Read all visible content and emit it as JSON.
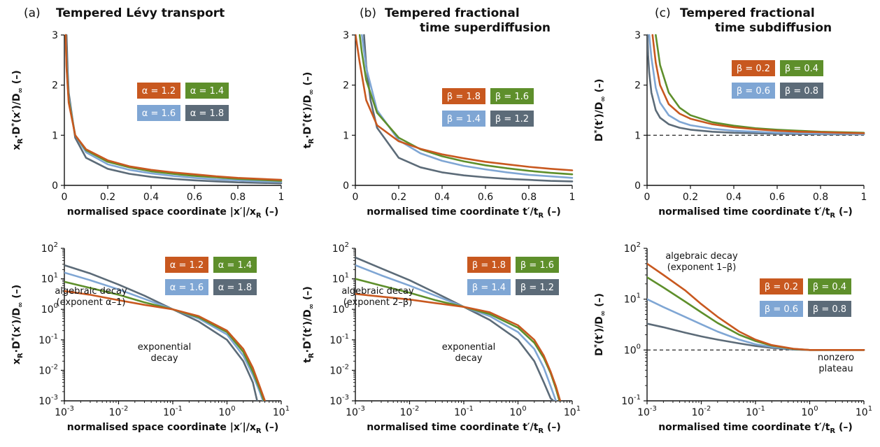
{
  "colors": {
    "orange": "#c8581f",
    "green": "#5e8f2b",
    "blue": "#7fa6d4",
    "slate": "#5c6b78"
  },
  "chart_data": [
    {
      "id": "a-top",
      "type": "line",
      "panel_letter": "(a)",
      "panel_title": "Tempered Lévy transport",
      "scale": "linear",
      "xlim": [
        0,
        1
      ],
      "ylim": [
        0,
        3
      ],
      "x_ticks": [
        "0",
        "0.2",
        "0.4",
        "0.6",
        "0.8",
        "1"
      ],
      "y_ticks": [
        "0",
        "1",
        "2",
        "3"
      ],
      "xlabel": "normalised space coordinate |x′|/xR (–)",
      "ylabel": "xR·D*(x′)/D∞ (–)",
      "series": [
        {
          "name": "α = 1.2",
          "color": "#c8581f",
          "x": [
            0.006,
            0.01,
            0.02,
            0.05,
            0.1,
            0.2,
            0.3,
            0.4,
            0.5,
            0.6,
            0.7,
            0.8,
            0.9,
            1.0
          ],
          "y": [
            3.0,
            2.35,
            1.65,
            1.0,
            0.72,
            0.5,
            0.38,
            0.31,
            0.26,
            0.22,
            0.18,
            0.15,
            0.13,
            0.11
          ]
        },
        {
          "name": "α = 1.4",
          "color": "#5e8f2b",
          "x": [
            0.006,
            0.01,
            0.02,
            0.05,
            0.1,
            0.2,
            0.3,
            0.4,
            0.5,
            0.6,
            0.7,
            0.8,
            0.9,
            1.0
          ],
          "y": [
            3.0,
            2.4,
            1.7,
            1.0,
            0.7,
            0.47,
            0.36,
            0.28,
            0.23,
            0.19,
            0.16,
            0.13,
            0.11,
            0.09
          ]
        },
        {
          "name": "α = 1.6",
          "color": "#7fa6d4",
          "x": [
            0.007,
            0.01,
            0.02,
            0.05,
            0.1,
            0.2,
            0.3,
            0.4,
            0.5,
            0.6,
            0.7,
            0.8,
            0.9,
            1.0
          ],
          "y": [
            3.0,
            2.5,
            1.75,
            1.0,
            0.66,
            0.42,
            0.31,
            0.24,
            0.19,
            0.15,
            0.12,
            0.1,
            0.08,
            0.07
          ]
        },
        {
          "name": "α = 1.8",
          "color": "#5c6b78",
          "x": [
            0.01,
            0.015,
            0.02,
            0.05,
            0.1,
            0.2,
            0.3,
            0.4,
            0.5,
            0.6,
            0.7,
            0.8,
            0.9,
            1.0
          ],
          "y": [
            3.0,
            2.3,
            1.85,
            0.95,
            0.55,
            0.33,
            0.23,
            0.17,
            0.13,
            0.1,
            0.08,
            0.06,
            0.05,
            0.04
          ]
        }
      ],
      "legend": [
        "α = 1.2",
        "α = 1.4",
        "α = 1.6",
        "α = 1.8"
      ],
      "annotations": []
    },
    {
      "id": "b-top",
      "type": "line",
      "panel_letter": "(b)",
      "panel_title_line1": "Tempered fractional",
      "panel_title_line2": "time superdiffusion",
      "scale": "linear",
      "xlim": [
        0,
        1
      ],
      "ylim": [
        0,
        3
      ],
      "x_ticks": [
        "0",
        "0.2",
        "0.4",
        "0.6",
        "0.8",
        "1"
      ],
      "y_ticks": [
        "0",
        "1",
        "2",
        "3"
      ],
      "xlabel": "normalised time coordinate t′/tR (–)",
      "ylabel": "tR·D*(t′)/D∞ (–)",
      "series": [
        {
          "name": "β = 1.8",
          "color": "#c8581f",
          "x": [
            0.001,
            0.02,
            0.05,
            0.1,
            0.2,
            0.3,
            0.4,
            0.5,
            0.6,
            0.7,
            0.8,
            0.9,
            1.0
          ],
          "y": [
            3.0,
            2.45,
            1.7,
            1.2,
            0.88,
            0.73,
            0.62,
            0.54,
            0.47,
            0.42,
            0.37,
            0.33,
            0.3
          ]
        },
        {
          "name": "β = 1.6",
          "color": "#5e8f2b",
          "x": [
            0.02,
            0.03,
            0.05,
            0.1,
            0.2,
            0.3,
            0.4,
            0.5,
            0.6,
            0.7,
            0.8,
            0.9,
            1.0
          ],
          "y": [
            3.0,
            2.65,
            2.1,
            1.45,
            0.95,
            0.72,
            0.58,
            0.48,
            0.4,
            0.34,
            0.29,
            0.25,
            0.22
          ]
        },
        {
          "name": "β = 1.4",
          "color": "#7fa6d4",
          "x": [
            0.03,
            0.05,
            0.1,
            0.2,
            0.3,
            0.4,
            0.5,
            0.6,
            0.7,
            0.8,
            0.9,
            1.0
          ],
          "y": [
            3.0,
            2.35,
            1.5,
            0.9,
            0.64,
            0.49,
            0.39,
            0.32,
            0.26,
            0.21,
            0.18,
            0.15
          ]
        },
        {
          "name": "β = 1.2",
          "color": "#5c6b78",
          "x": [
            0.04,
            0.05,
            0.07,
            0.1,
            0.2,
            0.3,
            0.4,
            0.5,
            0.6,
            0.7,
            0.8,
            0.9,
            1.0
          ],
          "y": [
            3.0,
            2.4,
            1.7,
            1.15,
            0.55,
            0.36,
            0.26,
            0.2,
            0.16,
            0.13,
            0.11,
            0.09,
            0.08
          ]
        }
      ],
      "legend": [
        "β = 1.8",
        "β = 1.6",
        "β = 1.4",
        "β = 1.2"
      ],
      "annotations": []
    },
    {
      "id": "c-top",
      "type": "line",
      "panel_letter": "(c)",
      "panel_title_line1": "Tempered fractional",
      "panel_title_line2": "time subdiffusion",
      "scale": "linear",
      "xlim": [
        0,
        1
      ],
      "ylim": [
        0,
        3
      ],
      "x_ticks": [
        "0",
        "0.2",
        "0.4",
        "0.6",
        "0.8",
        "1"
      ],
      "y_ticks": [
        "0",
        "1",
        "2",
        "3"
      ],
      "xlabel": "normalised time coordinate t′/tR (–)",
      "ylabel": "D*(t′)/D∞ (–)",
      "reference_line": 1,
      "series": [
        {
          "name": "β = 0.2",
          "color": "#c8581f",
          "x": [
            0.025,
            0.04,
            0.06,
            0.1,
            0.15,
            0.2,
            0.3,
            0.4,
            0.5,
            0.6,
            0.7,
            0.8,
            0.9,
            1.0
          ],
          "y": [
            3.0,
            2.45,
            2.0,
            1.62,
            1.43,
            1.33,
            1.22,
            1.16,
            1.12,
            1.09,
            1.07,
            1.06,
            1.05,
            1.04
          ]
        },
        {
          "name": "β = 0.4",
          "color": "#5e8f2b",
          "x": [
            0.04,
            0.06,
            0.1,
            0.15,
            0.2,
            0.3,
            0.4,
            0.5,
            0.6,
            0.7,
            0.8,
            0.9,
            1.0
          ],
          "y": [
            3.0,
            2.4,
            1.85,
            1.55,
            1.4,
            1.26,
            1.19,
            1.14,
            1.11,
            1.09,
            1.07,
            1.06,
            1.05
          ]
        },
        {
          "name": "β = 0.6",
          "color": "#7fa6d4",
          "x": [
            0.01,
            0.02,
            0.04,
            0.06,
            0.1,
            0.15,
            0.2,
            0.3,
            0.4,
            0.5,
            0.6,
            0.7,
            0.8,
            0.9,
            1.0
          ],
          "y": [
            3.0,
            2.55,
            1.95,
            1.65,
            1.4,
            1.27,
            1.2,
            1.13,
            1.09,
            1.07,
            1.05,
            1.04,
            1.03,
            1.03,
            1.02
          ]
        },
        {
          "name": "β = 0.8",
          "color": "#5c6b78",
          "x": [
            0.002,
            0.005,
            0.01,
            0.02,
            0.04,
            0.06,
            0.1,
            0.15,
            0.2,
            0.3,
            0.4,
            0.5,
            0.6,
            0.8,
            1.0
          ],
          "y": [
            3.0,
            2.6,
            2.25,
            1.85,
            1.5,
            1.35,
            1.22,
            1.15,
            1.11,
            1.07,
            1.05,
            1.04,
            1.03,
            1.02,
            1.02
          ]
        }
      ],
      "legend": [
        "β = 0.2",
        "β = 0.4",
        "β = 0.6",
        "β = 0.8"
      ],
      "annotations": []
    },
    {
      "id": "a-bot",
      "type": "line",
      "scale": "log",
      "xlim": [
        0.001,
        10
      ],
      "ylim": [
        0.001,
        100
      ],
      "x_ticks": [
        "10^-3",
        "10^-2",
        "10^-1",
        "10^0",
        "10^1"
      ],
      "y_ticks": [
        "10^-3",
        "10^-2",
        "10^-1",
        "10^0",
        "10^1",
        "10^2"
      ],
      "xlabel": "normalised space coordinate |x′|/xR (–)",
      "ylabel": "xR·D*(x′)/D∞ (–)",
      "series": [
        {
          "name": "α = 1.2",
          "color": "#c8581f",
          "x": [
            0.001,
            0.003,
            0.01,
            0.03,
            0.1,
            0.3,
            1,
            2,
            3,
            4,
            5
          ],
          "y": [
            4.0,
            3.0,
            2.0,
            1.4,
            1.0,
            0.6,
            0.2,
            0.05,
            0.012,
            0.003,
            0.001
          ]
        },
        {
          "name": "α = 1.4",
          "color": "#5e8f2b",
          "x": [
            0.001,
            0.003,
            0.01,
            0.03,
            0.1,
            0.3,
            1,
            2,
            3,
            4,
            4.8
          ],
          "y": [
            8.0,
            5.0,
            3.0,
            1.7,
            1.0,
            0.55,
            0.18,
            0.04,
            0.009,
            0.0025,
            0.001
          ]
        },
        {
          "name": "α = 1.6",
          "color": "#7fa6d4",
          "x": [
            0.001,
            0.003,
            0.01,
            0.03,
            0.1,
            0.3,
            1,
            2,
            3,
            4,
            4.6
          ],
          "y": [
            16.0,
            9.0,
            4.5,
            2.2,
            1.0,
            0.5,
            0.15,
            0.03,
            0.007,
            0.002,
            0.001
          ]
        },
        {
          "name": "α = 1.8",
          "color": "#5c6b78",
          "x": [
            0.001,
            0.003,
            0.01,
            0.03,
            0.1,
            0.3,
            1,
            2,
            3,
            3.6
          ],
          "y": [
            28.0,
            15.0,
            6.5,
            2.8,
            1.0,
            0.4,
            0.1,
            0.02,
            0.004,
            0.001
          ]
        }
      ],
      "legend": [
        "α = 1.2",
        "α = 1.4",
        "α = 1.6",
        "α = 1.8"
      ],
      "annotations": [
        {
          "lines": [
            "algebraic decay",
            "(exponent α–1)"
          ],
          "at": [
            0.004,
            0.6
          ]
        },
        {
          "lines": [
            "exponential",
            "decay"
          ],
          "at": [
            0.25,
            0.01
          ]
        }
      ]
    },
    {
      "id": "b-bot",
      "type": "line",
      "scale": "log",
      "xlim": [
        0.001,
        10
      ],
      "ylim": [
        0.001,
        100
      ],
      "x_ticks": [
        "10^-3",
        "10^-2",
        "10^-1",
        "10^0",
        "10^1"
      ],
      "y_ticks": [
        "10^-3",
        "10^-2",
        "10^-1",
        "10^0",
        "10^1",
        "10^2"
      ],
      "xlabel": "normalised time coordinate t′/tR (–)",
      "ylabel": "tR·D*(t′)/D∞ (–)",
      "series": [
        {
          "name": "β = 1.8",
          "color": "#c8581f",
          "x": [
            0.001,
            0.003,
            0.01,
            0.03,
            0.1,
            0.3,
            1,
            2,
            3,
            4,
            5,
            6
          ],
          "y": [
            3.2,
            2.6,
            2.1,
            1.6,
            1.2,
            0.8,
            0.3,
            0.1,
            0.03,
            0.009,
            0.003,
            0.001
          ]
        },
        {
          "name": "β = 1.6",
          "color": "#5e8f2b",
          "x": [
            0.001,
            0.003,
            0.01,
            0.03,
            0.1,
            0.3,
            1,
            2,
            3,
            4,
            5,
            5.8
          ],
          "y": [
            10.0,
            6.0,
            3.5,
            2.0,
            1.2,
            0.7,
            0.25,
            0.08,
            0.025,
            0.008,
            0.0025,
            0.001
          ]
        },
        {
          "name": "β = 1.4",
          "color": "#7fa6d4",
          "x": [
            0.001,
            0.003,
            0.01,
            0.03,
            0.1,
            0.3,
            1,
            2,
            3,
            4,
            5
          ],
          "y": [
            28.0,
            13.0,
            6.0,
            2.8,
            1.2,
            0.6,
            0.18,
            0.05,
            0.012,
            0.003,
            0.001
          ]
        },
        {
          "name": "β = 1.2",
          "color": "#5c6b78",
          "x": [
            0.001,
            0.003,
            0.01,
            0.03,
            0.1,
            0.3,
            1,
            2,
            3,
            4,
            4.5
          ],
          "y": [
            50.0,
            22.0,
            9.0,
            3.5,
            1.2,
            0.45,
            0.1,
            0.02,
            0.004,
            0.0012,
            0.001
          ]
        }
      ],
      "legend": [
        "β = 1.8",
        "β = 1.6",
        "β = 1.4",
        "β = 1.2"
      ],
      "annotations": [
        {
          "lines": [
            "algebraic decay",
            "(exponent 2–β)"
          ],
          "at": [
            0.004,
            0.6
          ]
        },
        {
          "lines": [
            "exponential",
            "decay"
          ],
          "at": [
            0.25,
            0.01
          ]
        }
      ]
    },
    {
      "id": "c-bot",
      "type": "line",
      "scale": "log",
      "xlim": [
        0.001,
        10
      ],
      "ylim": [
        0.1,
        100
      ],
      "x_ticks": [
        "10^-3",
        "10^-2",
        "10^-1",
        "10^0",
        "10^1"
      ],
      "y_ticks": [
        "10^-1",
        "10^0",
        "10^1",
        "10^2"
      ],
      "xlabel": "normalised time coordinate t′/tR (–)",
      "ylabel": "D*(t′)/D∞ (–)",
      "reference_line": 1,
      "series": [
        {
          "name": "β = 0.2",
          "color": "#c8581f",
          "x": [
            0.001,
            0.002,
            0.005,
            0.01,
            0.02,
            0.05,
            0.1,
            0.2,
            0.5,
            1,
            2,
            5,
            10
          ],
          "y": [
            50.0,
            30.0,
            15.0,
            8.0,
            4.5,
            2.3,
            1.6,
            1.25,
            1.06,
            1.0,
            1.0,
            1.0,
            1.0
          ]
        },
        {
          "name": "β = 0.4",
          "color": "#5e8f2b",
          "x": [
            0.001,
            0.002,
            0.005,
            0.01,
            0.02,
            0.05,
            0.1,
            0.2,
            0.5,
            1,
            2,
            5,
            10
          ],
          "y": [
            27.0,
            17.0,
            9.0,
            5.5,
            3.4,
            2.0,
            1.5,
            1.22,
            1.05,
            1.0,
            1.0,
            1.0,
            1.0
          ]
        },
        {
          "name": "β = 0.6",
          "color": "#7fa6d4",
          "x": [
            0.001,
            0.002,
            0.005,
            0.01,
            0.02,
            0.05,
            0.1,
            0.2,
            0.5,
            1,
            2,
            5,
            10
          ],
          "y": [
            10.0,
            7.0,
            4.5,
            3.2,
            2.3,
            1.6,
            1.3,
            1.15,
            1.04,
            1.0,
            1.0,
            1.0,
            1.0
          ]
        },
        {
          "name": "β = 0.8",
          "color": "#5c6b78",
          "x": [
            0.001,
            0.002,
            0.005,
            0.01,
            0.02,
            0.05,
            0.1,
            0.2,
            0.5,
            1,
            2,
            5,
            10
          ],
          "y": [
            3.3,
            2.8,
            2.2,
            1.85,
            1.6,
            1.35,
            1.2,
            1.1,
            1.02,
            1.0,
            1.0,
            1.0,
            1.0
          ]
        }
      ],
      "legend": [
        "β = 0.2",
        "β = 0.4",
        "β = 0.6",
        "β = 0.8"
      ],
      "annotations": [
        {
          "lines": [
            "algebraic decay",
            "(exponent 1–β)"
          ],
          "at": [
            0.0014,
            90
          ]
        },
        {
          "lines": [
            "nonzero",
            "plateau"
          ],
          "at": [
            3.2,
            0.6
          ]
        }
      ]
    }
  ]
}
